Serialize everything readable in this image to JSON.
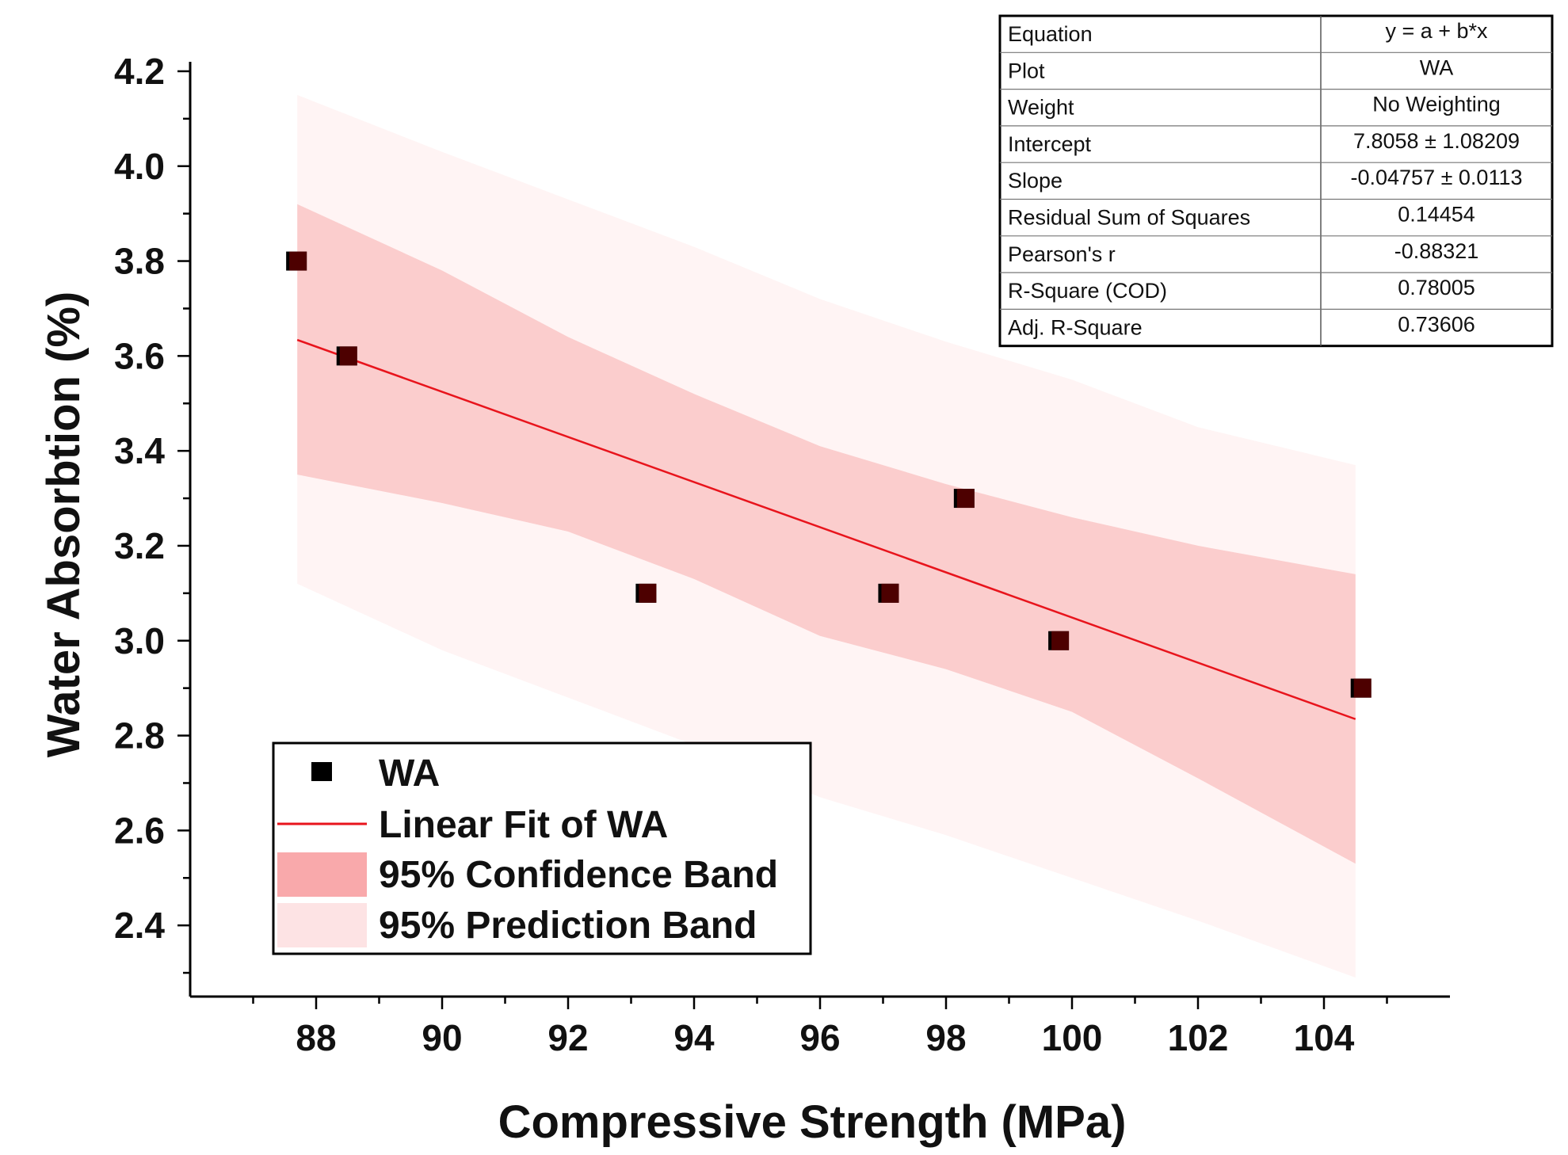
{
  "chart_data": {
    "type": "scatter",
    "title": "",
    "xlabel": "Compressive Strength (MPa)",
    "ylabel": "Water Absorbtion (%)",
    "xlim": [
      86,
      106
    ],
    "ylim": [
      2.25,
      4.25
    ],
    "xticks": [
      "88",
      "90",
      "92",
      "94",
      "96",
      "98",
      "100",
      "102",
      "104"
    ],
    "yticks": [
      "2.4",
      "2.6",
      "2.8",
      "3.0",
      "3.2",
      "3.4",
      "3.6",
      "3.8",
      "4.0",
      "4.2"
    ],
    "grid": false,
    "legend_position": "bottom-left",
    "series": [
      {
        "name": "WA",
        "type": "scatter",
        "x": [
          87.7,
          88.5,
          93.25,
          97.1,
          98.3,
          99.8,
          104.6
        ],
        "y": [
          3.8,
          3.6,
          3.1,
          3.1,
          3.3,
          3.0,
          2.9
        ],
        "color": "#000000"
      },
      {
        "name": "Linear Fit of WA",
        "type": "line",
        "intercept": 7.8058,
        "slope": -0.04757,
        "x_range": [
          87.7,
          104.5
        ],
        "color": "#e8141c"
      },
      {
        "name": "95% Confidence Band",
        "type": "band",
        "x": [
          87.7,
          90,
          92,
          94,
          96,
          98,
          100,
          102,
          104.5
        ],
        "lower": [
          3.35,
          3.29,
          3.23,
          3.13,
          3.01,
          2.94,
          2.85,
          2.71,
          2.53
        ],
        "upper": [
          3.92,
          3.78,
          3.64,
          3.52,
          3.41,
          3.33,
          3.26,
          3.2,
          3.14
        ],
        "color": "#fbcdcd"
      },
      {
        "name": "95% Prediction Band",
        "type": "band",
        "x": [
          87.7,
          90,
          92,
          94,
          96,
          98,
          100,
          102,
          104.5
        ],
        "lower": [
          3.12,
          2.98,
          2.88,
          2.78,
          2.67,
          2.59,
          2.5,
          2.41,
          2.29
        ],
        "upper": [
          4.15,
          4.03,
          3.93,
          3.83,
          3.72,
          3.63,
          3.55,
          3.45,
          3.37
        ],
        "color": "#fff4f4"
      }
    ],
    "legend": [
      {
        "label": "WA",
        "symbol": "square"
      },
      {
        "label": "Linear Fit of WA",
        "symbol": "line"
      },
      {
        "label": "95% Confidence Band",
        "symbol": "fill-confidence"
      },
      {
        "label": "95% Prediction Band",
        "symbol": "fill-prediction"
      }
    ],
    "stats_table": [
      [
        "Equation",
        "y = a + b*x"
      ],
      [
        "Plot",
        "WA"
      ],
      [
        "Weight",
        "No Weighting"
      ],
      [
        "Intercept",
        "7.8058 ± 1.08209"
      ],
      [
        "Slope",
        "-0.04757 ± 0.0113"
      ],
      [
        "Residual Sum of Squares",
        "0.14454"
      ],
      [
        "Pearson's r",
        "-0.88321"
      ],
      [
        "R-Square (COD)",
        "0.78005"
      ],
      [
        "Adj. R-Square",
        "0.73606"
      ]
    ],
    "colors": {
      "points": "#000000",
      "points_overlay": "#5a0000",
      "fit_line": "#e8141c",
      "confidence_band": "#fbcdcd",
      "prediction_band": "#fff4f4"
    }
  }
}
